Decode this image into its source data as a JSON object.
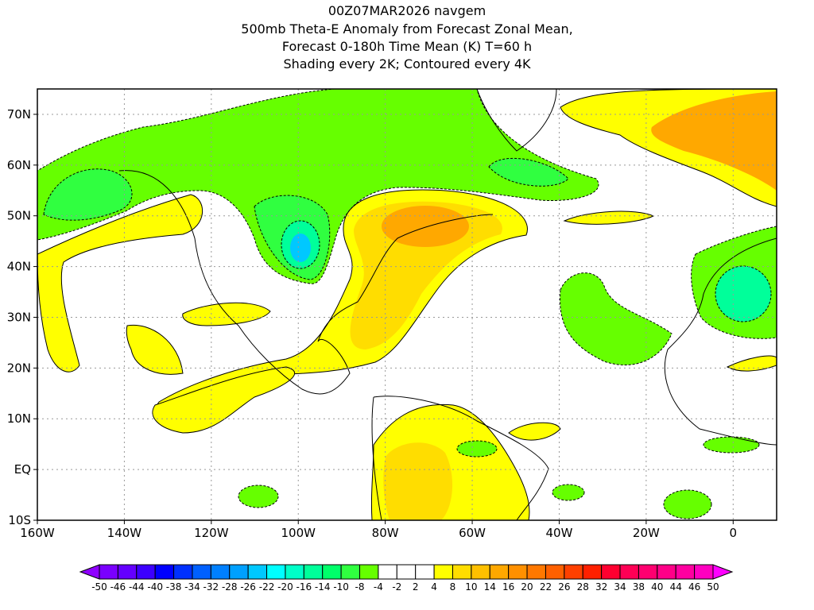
{
  "title": {
    "lines": [
      "00Z07MAR2026 navgem",
      "500mb Theta-E Anomaly from Forecast Zonal Mean,",
      "Forecast 0-180h Time Mean (K) T=60 h",
      "Shading every 2K; Contoured every 4K"
    ]
  },
  "axes": {
    "x_ticks": [
      "160W",
      "140W",
      "120W",
      "100W",
      "80W",
      "60W",
      "40W",
      "20W",
      "0"
    ],
    "y_ticks": [
      "70N",
      "60N",
      "50N",
      "40N",
      "30N",
      "20N",
      "10N",
      "EQ",
      "10S"
    ],
    "lon_range": [
      -160,
      10
    ],
    "lat_range": [
      -10,
      75
    ]
  },
  "colorbar": {
    "labels": [
      "-50",
      "-46",
      "-44",
      "-40",
      "-38",
      "-34",
      "-32",
      "-28",
      "-26",
      "-22",
      "-20",
      "-16",
      "-14",
      "-10",
      "-8",
      "-4",
      "-2",
      "2",
      "4",
      "8",
      "10",
      "14",
      "16",
      "20",
      "22",
      "26",
      "28",
      "32",
      "34",
      "38",
      "40",
      "44",
      "46",
      "50"
    ],
    "colors": [
      "#8f00ff",
      "#7a00ff",
      "#6400ff",
      "#3c00ff",
      "#0000ff",
      "#0030ff",
      "#0060ff",
      "#0080ff",
      "#00a0ff",
      "#00c8ff",
      "#00ffff",
      "#00ffc8",
      "#00ff9a",
      "#00ff6a",
      "#30ff40",
      "#66ff00",
      "#ffffff",
      "#ffffff",
      "#ffffff",
      "#ffff00",
      "#ffdd00",
      "#ffc000",
      "#ffa800",
      "#ff9000",
      "#ff7800",
      "#ff6000",
      "#ff4000",
      "#ff2000",
      "#ff0030",
      "#ff0055",
      "#ff0070",
      "#ff0088",
      "#ff00a0",
      "#ff00c0",
      "#ff00ff"
    ]
  },
  "shading_colors": {
    "green": "#66ff00",
    "green2": "#30ff40",
    "teal": "#00ff9a",
    "cyan": "#00c8ff",
    "yellow": "#ffff00",
    "gold": "#ffdd00",
    "orange": "#ffa800",
    "deep_orange": "#ff9000"
  }
}
